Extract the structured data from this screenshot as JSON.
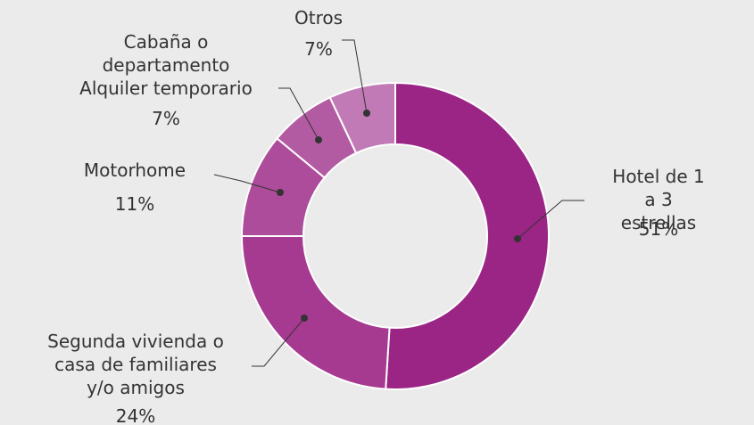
{
  "chart_data": {
    "type": "donut",
    "categories": [
      "Hotel de 1 a 3\nestrellas",
      "Segunda vivienda o\ncasa de familiares\ny/o amigos",
      "Motorhome",
      "Cabaña o\ndepartamento\nAlquiler temporario",
      "Otros"
    ],
    "values": [
      51,
      24,
      11,
      7,
      7
    ],
    "value_labels": [
      "51%",
      "24%",
      "11%",
      "7%",
      "7%"
    ],
    "colors": [
      "#9b2585",
      "#a63a90",
      "#ad4c9a",
      "#b35ba2",
      "#c27ab7"
    ]
  }
}
